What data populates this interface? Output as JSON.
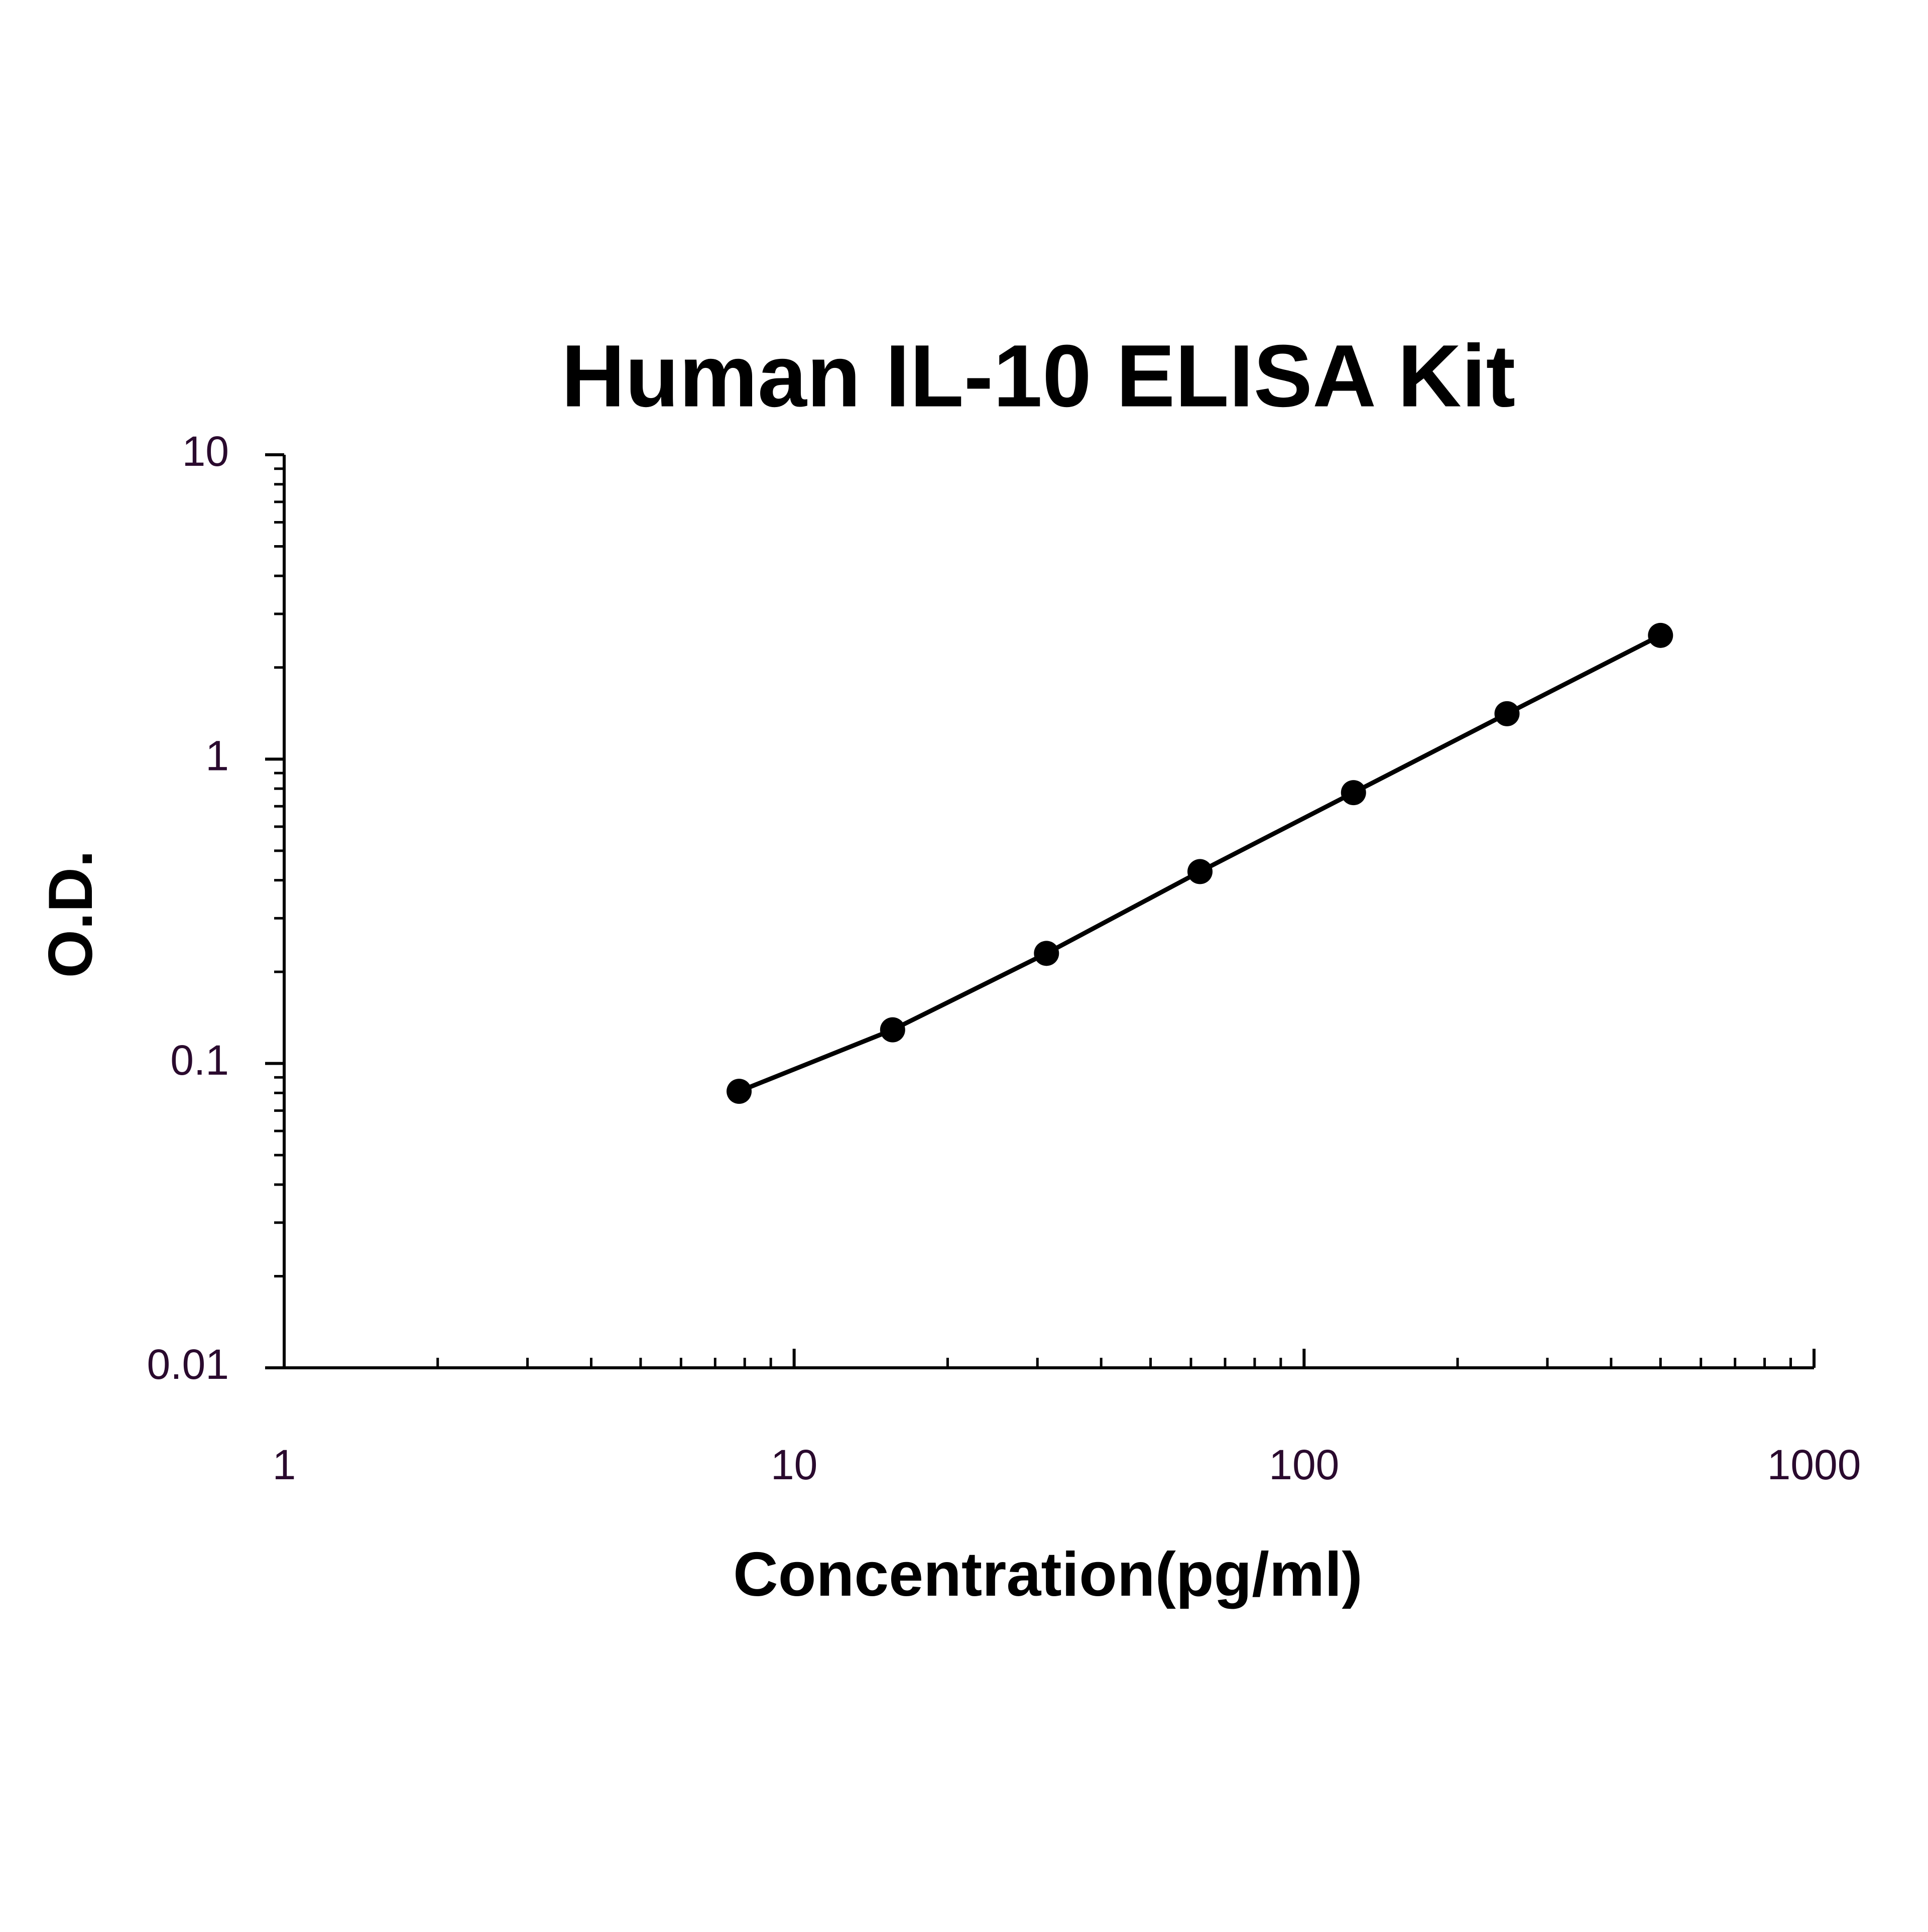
{
  "chart_data": {
    "type": "line",
    "title": "Human IL-10 ELISA Kit",
    "x_label": "Concentration(pg/ml)",
    "y_label": "O.D.",
    "x": [
      7.8,
      15.6,
      31.25,
      62.5,
      125,
      250,
      500
    ],
    "series": [
      {
        "color": "#000000",
        "values": [
          0.081,
          0.129,
          0.23,
          0.427,
          0.776,
          1.41,
          2.55
        ]
      }
    ],
    "xlim": [
      1,
      1000
    ],
    "ylim": [
      0.01,
      10
    ],
    "xticks": [
      1,
      10,
      100,
      1000
    ],
    "yticks": [
      0.01,
      0.1,
      1,
      10
    ],
    "x_log": true,
    "y_log": true,
    "grid": false
  }
}
